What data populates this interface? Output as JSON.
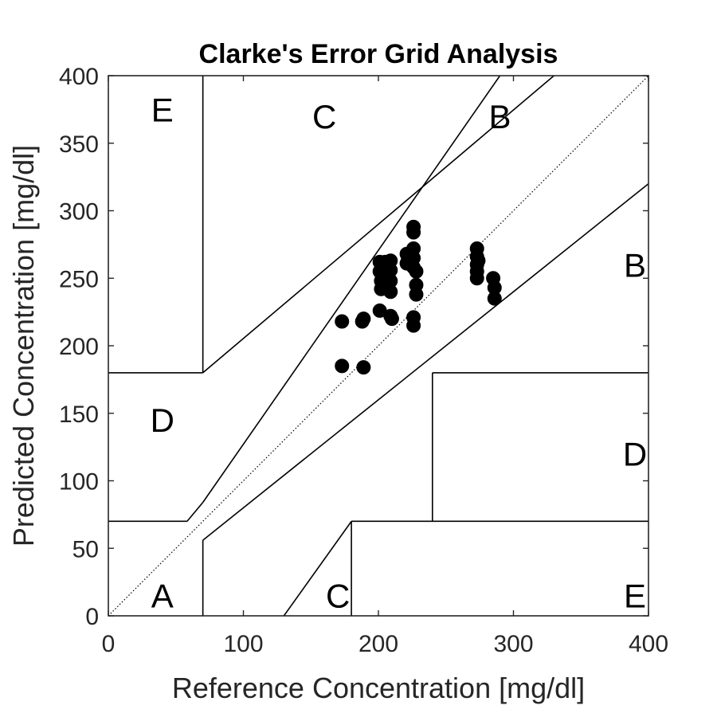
{
  "chart_data": {
    "type": "scatter",
    "title": "Clarke's Error Grid Analysis",
    "xlabel": "Reference Concentration [mg/dl]",
    "ylabel": "Predicted Concentration [mg/dl]",
    "xlim": [
      0,
      400
    ],
    "ylim": [
      0,
      400
    ],
    "xticks": [
      0,
      100,
      200,
      300,
      400
    ],
    "yticks": [
      0,
      50,
      100,
      150,
      200,
      250,
      300,
      350,
      400
    ],
    "grid": false,
    "marker_color": "#000000",
    "zone_boundaries": [
      {
        "x": [
          0,
          400
        ],
        "y": [
          0,
          400
        ],
        "style": "dotted"
      },
      {
        "x": [
          0,
          58.33
        ],
        "y": [
          70,
          70
        ]
      },
      {
        "x": [
          70,
          290
        ],
        "y": [
          84,
          400
        ]
      },
      {
        "x": [
          58.33,
          70
        ],
        "y": [
          70,
          84
        ]
      },
      {
        "x": [
          70,
          70
        ],
        "y": [
          180,
          400
        ]
      },
      {
        "x": [
          0,
          70
        ],
        "y": [
          180,
          180
        ]
      },
      {
        "x": [
          70,
          330
        ],
        "y": [
          180,
          400
        ]
      },
      {
        "x": [
          70,
          70
        ],
        "y": [
          0,
          56
        ]
      },
      {
        "x": [
          70,
          400
        ],
        "y": [
          56,
          320
        ]
      },
      {
        "x": [
          130,
          180
        ],
        "y": [
          0,
          70
        ]
      },
      {
        "x": [
          180,
          400
        ],
        "y": [
          70,
          70
        ]
      },
      {
        "x": [
          180,
          180
        ],
        "y": [
          0,
          70
        ]
      },
      {
        "x": [
          240,
          240
        ],
        "y": [
          70,
          180
        ]
      },
      {
        "x": [
          240,
          400
        ],
        "y": [
          180,
          180
        ]
      }
    ],
    "zone_labels": [
      {
        "text": "A",
        "x": 40,
        "y": 15
      },
      {
        "text": "B",
        "x": 290,
        "y": 370
      },
      {
        "text": "B",
        "x": 390,
        "y": 260
      },
      {
        "text": "C",
        "x": 160,
        "y": 370
      },
      {
        "text": "C",
        "x": 170,
        "y": 15
      },
      {
        "text": "D",
        "x": 40,
        "y": 145
      },
      {
        "text": "D",
        "x": 390,
        "y": 120
      },
      {
        "text": "E",
        "x": 40,
        "y": 375
      },
      {
        "text": "E",
        "x": 390,
        "y": 15
      }
    ],
    "points": [
      {
        "x": 173,
        "y": 218
      },
      {
        "x": 173,
        "y": 185
      },
      {
        "x": 188,
        "y": 218
      },
      {
        "x": 189,
        "y": 220
      },
      {
        "x": 189,
        "y": 184
      },
      {
        "x": 201,
        "y": 262
      },
      {
        "x": 201,
        "y": 255
      },
      {
        "x": 202,
        "y": 248
      },
      {
        "x": 202,
        "y": 242
      },
      {
        "x": 201,
        "y": 226
      },
      {
        "x": 205,
        "y": 262
      },
      {
        "x": 205,
        "y": 250
      },
      {
        "x": 205,
        "y": 244
      },
      {
        "x": 206,
        "y": 258
      },
      {
        "x": 207,
        "y": 252
      },
      {
        "x": 209,
        "y": 263
      },
      {
        "x": 209,
        "y": 256
      },
      {
        "x": 209,
        "y": 248
      },
      {
        "x": 209,
        "y": 240
      },
      {
        "x": 209,
        "y": 222
      },
      {
        "x": 210,
        "y": 220
      },
      {
        "x": 221,
        "y": 268
      },
      {
        "x": 221,
        "y": 261
      },
      {
        "x": 222,
        "y": 264
      },
      {
        "x": 226,
        "y": 288
      },
      {
        "x": 226,
        "y": 284
      },
      {
        "x": 226,
        "y": 272
      },
      {
        "x": 226,
        "y": 265
      },
      {
        "x": 226,
        "y": 258
      },
      {
        "x": 226,
        "y": 221
      },
      {
        "x": 226,
        "y": 215
      },
      {
        "x": 228,
        "y": 255
      },
      {
        "x": 228,
        "y": 245
      },
      {
        "x": 228,
        "y": 238
      },
      {
        "x": 273,
        "y": 272
      },
      {
        "x": 273,
        "y": 266
      },
      {
        "x": 273,
        "y": 260
      },
      {
        "x": 273,
        "y": 255
      },
      {
        "x": 273,
        "y": 250
      },
      {
        "x": 274,
        "y": 263
      },
      {
        "x": 285,
        "y": 250
      },
      {
        "x": 286,
        "y": 243
      },
      {
        "x": 286,
        "y": 235
      }
    ]
  }
}
